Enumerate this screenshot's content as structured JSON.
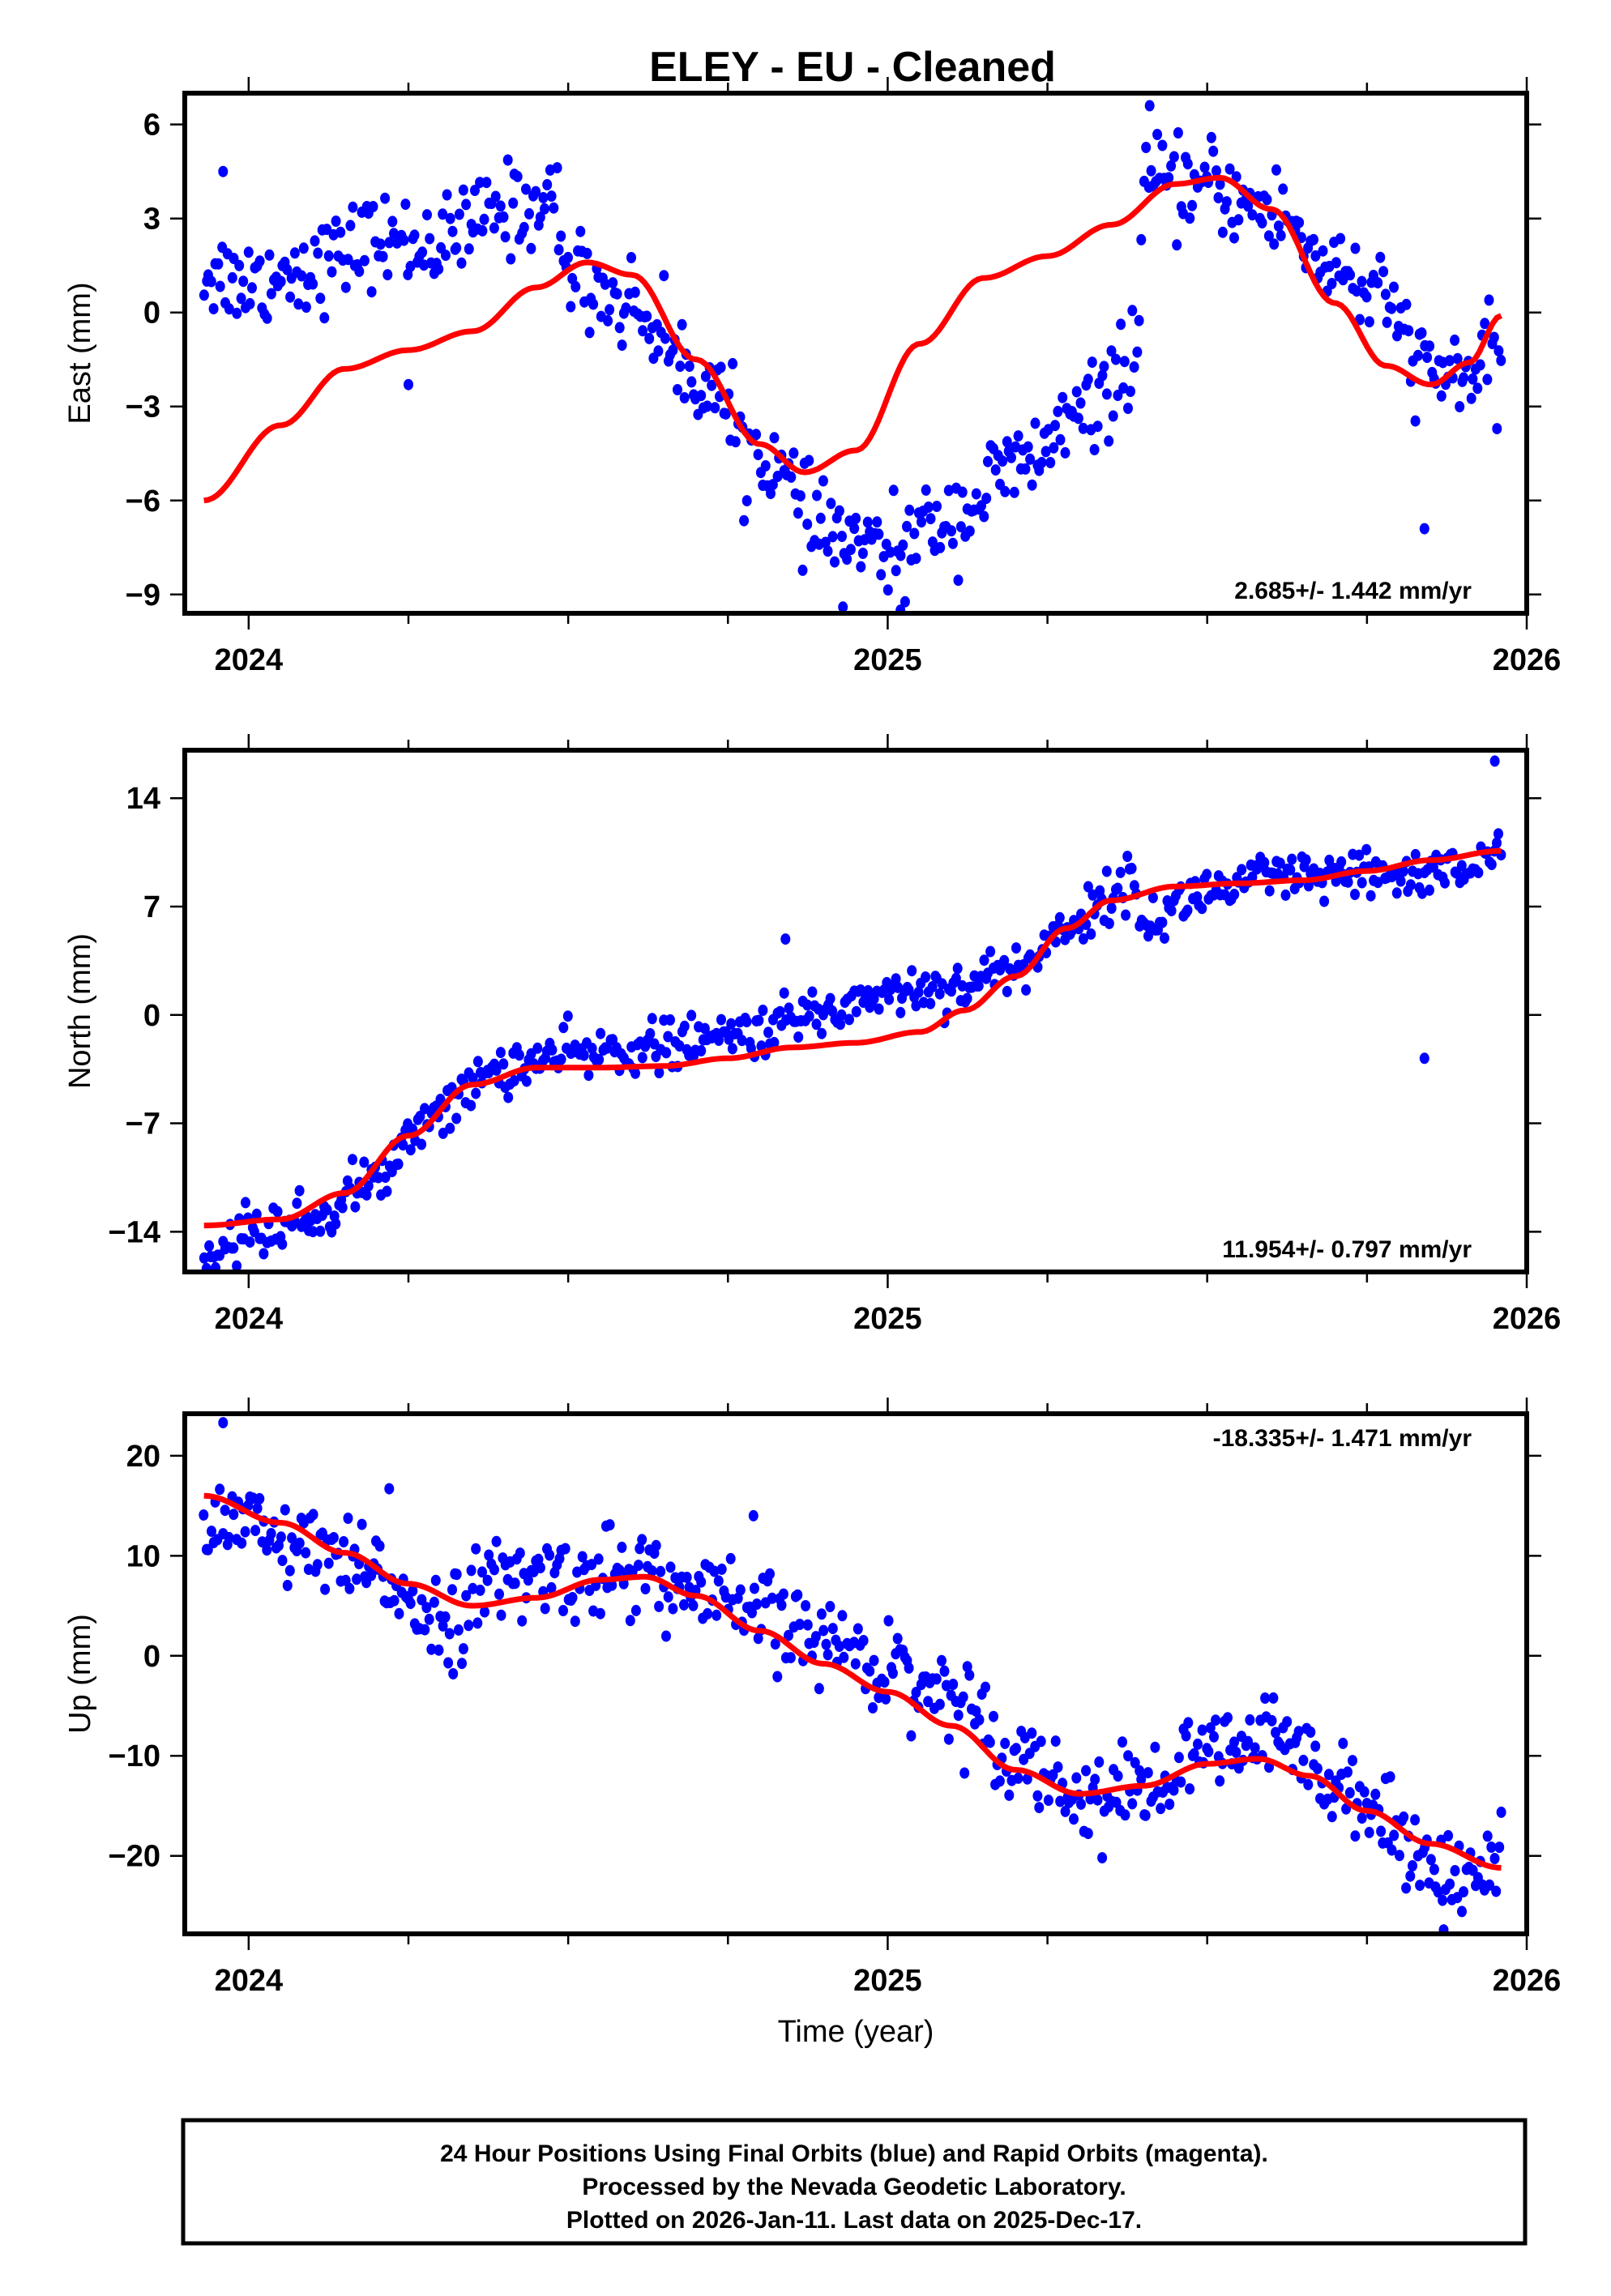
{
  "title": "ELEY  - EU - Cleaned",
  "footer": {
    "lines": [
      "24 Hour Positions Using Final Orbits (blue) and Rapid Orbits (magenta).",
      "Processed by the Nevada Geodetic Laboratory.",
      "Plotted on 2026-Jan-11. Last data on 2025-Dec-17."
    ]
  },
  "colors": {
    "points": "#0000ff",
    "fit": "#ff0000",
    "frame": "#000000"
  },
  "chart_data": [
    {
      "type": "scatter",
      "name": "east",
      "ylabel": "East (mm)",
      "xlabel": "",
      "xlim": [
        2023.9,
        2026.0
      ],
      "ylim": [
        -9.6,
        7.0
      ],
      "xticks": [
        2024,
        2025,
        2026
      ],
      "xminor_step": 0.25,
      "yticks": [
        6,
        3,
        0,
        -3,
        -6,
        -9
      ],
      "ytick_labels": [
        "6",
        "3",
        "0",
        "−3",
        "−6",
        "−9"
      ],
      "rate_label": "2.685+/- 1.442 mm/yr",
      "rate_position": "bottom-right",
      "fit": {
        "x": [
          2023.93,
          2024.05,
          2024.15,
          2024.25,
          2024.35,
          2024.45,
          2024.53,
          2024.6,
          2024.7,
          2024.8,
          2024.87,
          2024.95,
          2025.05,
          2025.15,
          2025.25,
          2025.35,
          2025.45,
          2025.52,
          2025.6,
          2025.7,
          2025.78,
          2025.85,
          2025.91,
          2025.96
        ],
        "y": [
          -6.0,
          -3.6,
          -1.8,
          -1.2,
          -0.6,
          0.8,
          1.6,
          1.2,
          -1.5,
          -4.2,
          -5.1,
          -4.4,
          -1.0,
          1.1,
          1.8,
          2.8,
          4.1,
          4.3,
          3.3,
          0.3,
          -1.7,
          -2.3,
          -1.6,
          -0.1
        ]
      },
      "points_trend": {
        "x": [
          2023.93,
          2024.0,
          2024.1,
          2024.2,
          2024.3,
          2024.4,
          2024.48,
          2024.5,
          2024.6,
          2024.7,
          2024.8,
          2024.9,
          2025.0,
          2025.1,
          2025.2,
          2025.3,
          2025.39,
          2025.4,
          2025.5,
          2025.6,
          2025.7,
          2025.78,
          2025.85,
          2025.96
        ],
        "y": [
          1.3,
          1.0,
          1.5,
          2.3,
          2.2,
          3.3,
          3.5,
          1.3,
          0.2,
          -2.0,
          -4.5,
          -7.0,
          -7.7,
          -6.5,
          -5.0,
          -3.4,
          -1.4,
          4.0,
          4.0,
          3.2,
          1.5,
          0.2,
          -2.0,
          -1.8
        ]
      },
      "points_noise_sd": 0.9,
      "outliers": [
        [
          2023.96,
          4.5
        ],
        [
          2025.41,
          6.6
        ],
        [
          2025.84,
          -6.9
        ],
        [
          2024.25,
          -2.3
        ],
        [
          2024.93,
          -9.4
        ],
        [
          2025.02,
          -9.5
        ]
      ]
    },
    {
      "type": "scatter",
      "name": "north",
      "ylabel": "North (mm)",
      "xlabel": "",
      "xlim": [
        2023.9,
        2026.0
      ],
      "ylim": [
        -16.6,
        17.1
      ],
      "xticks": [
        2024,
        2025,
        2026
      ],
      "xminor_step": 0.25,
      "yticks": [
        14,
        7,
        0,
        -7,
        -14
      ],
      "ytick_labels": [
        "14",
        "7",
        "0",
        "−7",
        "−14"
      ],
      "rate_label": "11.954+/- 0.797 mm/yr",
      "rate_position": "bottom-right",
      "fit": {
        "x": [
          2023.93,
          2024.05,
          2024.15,
          2024.25,
          2024.35,
          2024.45,
          2024.55,
          2024.65,
          2024.75,
          2024.85,
          2024.95,
          2025.05,
          2025.12,
          2025.2,
          2025.28,
          2025.35,
          2025.45,
          2025.55,
          2025.65,
          2025.75,
          2025.85,
          2025.96
        ],
        "y": [
          -13.6,
          -13.2,
          -11.5,
          -7.8,
          -4.5,
          -3.4,
          -3.4,
          -3.3,
          -2.8,
          -2.1,
          -1.8,
          -1.1,
          0.3,
          2.5,
          5.6,
          7.4,
          8.3,
          8.5,
          8.7,
          9.3,
          10.0,
          10.6
        ]
      },
      "points_trend": {
        "x": [
          2023.93,
          2024.0,
          2024.1,
          2024.2,
          2024.3,
          2024.4,
          2024.5,
          2024.6,
          2024.7,
          2024.8,
          2024.9,
          2025.0,
          2025.1,
          2025.2,
          2025.3,
          2025.38,
          2025.4,
          2025.5,
          2025.6,
          2025.7,
          2025.8,
          2025.9,
          2025.96
        ],
        "y": [
          -15.8,
          -14.0,
          -13.2,
          -10.5,
          -6.0,
          -3.4,
          -2.6,
          -2.2,
          -1.8,
          -1.0,
          0.2,
          1.5,
          1.8,
          3.0,
          6.2,
          8.6,
          6.0,
          8.0,
          8.8,
          8.8,
          9.0,
          9.5,
          10.0
        ]
      },
      "points_noise_sd": 1.0,
      "outliers": [
        [
          2025.95,
          16.4
        ],
        [
          2025.84,
          -2.8
        ],
        [
          2024.84,
          4.9
        ]
      ]
    },
    {
      "type": "scatter",
      "name": "up",
      "ylabel": "Up (mm)",
      "xlabel": "Time (year)",
      "xlim": [
        2023.9,
        2026.0
      ],
      "ylim": [
        -27.8,
        24.2
      ],
      "xticks": [
        2024,
        2025,
        2026
      ],
      "xminor_step": 0.25,
      "yticks": [
        20,
        10,
        0,
        -10,
        -20
      ],
      "ytick_labels": [
        "20",
        "10",
        "0",
        "−10",
        "−20"
      ],
      "rate_label": "-18.335+/- 1.471 mm/yr",
      "rate_position": "top-right",
      "fit": {
        "x": [
          2023.93,
          2024.05,
          2024.15,
          2024.25,
          2024.35,
          2024.45,
          2024.55,
          2024.62,
          2024.7,
          2024.8,
          2024.9,
          2025.0,
          2025.1,
          2025.2,
          2025.3,
          2025.4,
          2025.5,
          2025.58,
          2025.66,
          2025.75,
          2025.85,
          2025.96
        ],
        "y": [
          16.0,
          13.3,
          10.3,
          7.2,
          5.0,
          5.8,
          7.6,
          7.9,
          6.0,
          2.5,
          -0.8,
          -3.6,
          -7.0,
          -11.4,
          -13.8,
          -13.0,
          -10.8,
          -10.3,
          -12.0,
          -15.5,
          -18.8,
          -21.2
        ]
      },
      "points_trend": {
        "x": [
          2023.93,
          2024.0,
          2024.1,
          2024.2,
          2024.3,
          2024.4,
          2024.5,
          2024.6,
          2024.7,
          2024.8,
          2024.9,
          2025.0,
          2025.1,
          2025.2,
          2025.3,
          2025.4,
          2025.5,
          2025.6,
          2025.7,
          2025.8,
          2025.9,
          2025.96
        ],
        "y": [
          15.0,
          12.8,
          10.0,
          8.0,
          4.0,
          7.5,
          8.0,
          8.5,
          6.0,
          4.0,
          1.5,
          -1.0,
          -4.0,
          -9.5,
          -14.0,
          -13.5,
          -10.0,
          -8.5,
          -11.5,
          -18.0,
          -22.0,
          -21.5
        ]
      },
      "points_noise_sd": 2.7,
      "outliers": [
        [
          2023.96,
          23.3
        ],
        [
          2024.22,
          16.7
        ],
        [
          2024.79,
          14.0
        ],
        [
          2025.87,
          -27.4
        ],
        [
          2024.32,
          -1.8
        ]
      ]
    }
  ]
}
